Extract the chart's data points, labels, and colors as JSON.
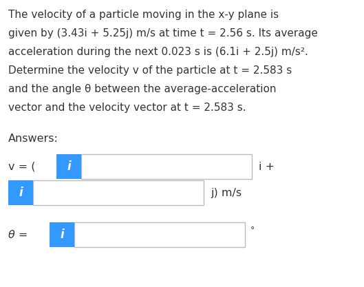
{
  "bg_color": "#ffffff",
  "text_color": "#333333",
  "blue_box_color": "#3399ff",
  "input_box_border": "#bbbbbb",
  "input_box_bg": "#ffffff",
  "paragraph_lines": [
    "The velocity of a particle moving in the x-y plane is",
    "given by (3.43i + 5.25j) m/s at time t = 2.56 s. Its average",
    "acceleration during the next 0.023 s is (6.1i + 2.5j) m/s².",
    "Determine the velocity v of the particle at t = 2.583 s",
    "and the angle θ between the average-acceleration",
    "vector and the velocity vector at t = 2.583 s."
  ],
  "answers_label": "Answers:",
  "v_label": "v = (",
  "i_label": "i +",
  "j_label": "j) m/s",
  "theta_label": "θ =",
  "degree_symbol": "°",
  "font_size_paragraph": 11.0,
  "font_size_label": 11.5,
  "font_size_i_icon": 12,
  "blue_box_color_icon": "#1a8fff"
}
